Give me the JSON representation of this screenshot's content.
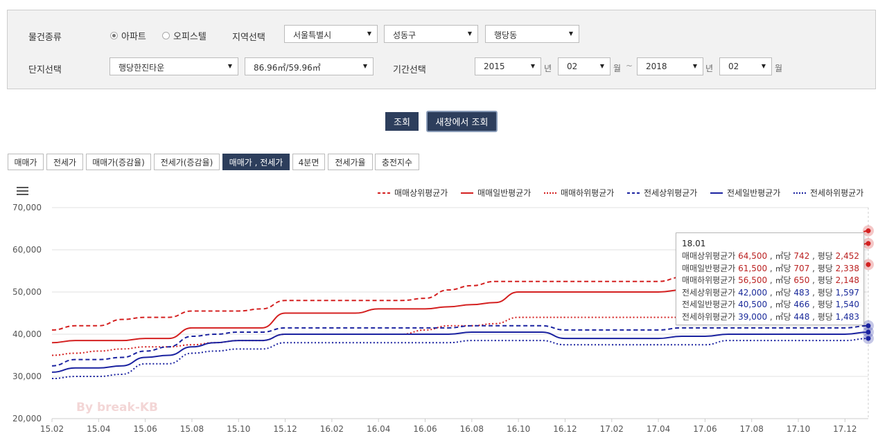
{
  "filters": {
    "property_type_label": "물건종류",
    "property_types": [
      {
        "label": "아파트",
        "checked": true
      },
      {
        "label": "오피스텔",
        "checked": false
      }
    ],
    "region_label": "지역선택",
    "region": [
      "서울특별시",
      "성동구",
      "행당동"
    ],
    "complex_label": "단지선택",
    "complex": "행당한진타운",
    "area": "86.96㎡/59.96㎡",
    "period_label": "기간선택",
    "start_year": "2015",
    "year_unit": "년",
    "start_month": "02",
    "month_unit": "월",
    "separator": "~",
    "end_year": "2018",
    "end_month": "02"
  },
  "actions": {
    "search": "조회",
    "search_new_window": "새창에서 조회"
  },
  "tabs": [
    {
      "label": "매매가",
      "active": false
    },
    {
      "label": "전세가",
      "active": false
    },
    {
      "label": "매매가(증감율)",
      "active": false
    },
    {
      "label": "전세가(증감율)",
      "active": false
    },
    {
      "label": "매매가 , 전세가",
      "active": true
    },
    {
      "label": "4분면",
      "active": false
    },
    {
      "label": "전세가율",
      "active": false
    },
    {
      "label": "충전지수",
      "active": false
    }
  ],
  "chart_data": {
    "type": "line",
    "watermark": "By break-KB",
    "ylim": [
      20000,
      70000
    ],
    "yticks": [
      "70,000",
      "60,000",
      "50,000",
      "40,000",
      "30,000",
      "20,000"
    ],
    "ytick_values": [
      70000,
      60000,
      50000,
      40000,
      30000,
      20000
    ],
    "x": [
      "15.02",
      "15.03",
      "15.04",
      "15.05",
      "15.06",
      "15.07",
      "15.08",
      "15.09",
      "15.10",
      "15.11",
      "15.12",
      "16.01",
      "16.02",
      "16.03",
      "16.04",
      "16.05",
      "16.06",
      "16.07",
      "16.08",
      "16.09",
      "16.10",
      "16.11",
      "16.12",
      "17.01",
      "17.02",
      "17.03",
      "17.04",
      "17.05",
      "17.06",
      "17.07",
      "17.08",
      "17.09",
      "17.10",
      "17.11",
      "17.12",
      "18.01"
    ],
    "xtick_labels": [
      "15.02",
      "15.04",
      "15.06",
      "15.08",
      "15.10",
      "15.12",
      "16.02",
      "16.04",
      "16.06",
      "16.08",
      "16.10",
      "16.12",
      "17.02",
      "17.04",
      "17.06",
      "17.08",
      "17.10",
      "17.12"
    ],
    "legend_position": "top-right",
    "grid": true,
    "series": [
      {
        "name": "매매상위평균가",
        "color": "#d42020",
        "dash": "dashed",
        "values": [
          41000,
          42000,
          42000,
          43500,
          44000,
          44000,
          45500,
          45500,
          45500,
          46000,
          48000,
          48000,
          48000,
          48000,
          48000,
          48000,
          48500,
          50500,
          51500,
          52500,
          52500,
          52500,
          52500,
          52500,
          52500,
          52500,
          52500,
          53500,
          53500,
          54500,
          55000,
          56000,
          57000,
          59000,
          61000,
          64500
        ]
      },
      {
        "name": "매매일반평균가",
        "color": "#d42020",
        "dash": "solid",
        "values": [
          38000,
          38500,
          38500,
          38500,
          39000,
          39000,
          41500,
          41500,
          41500,
          41500,
          45000,
          45000,
          45000,
          45000,
          46000,
          46000,
          46000,
          46500,
          47000,
          47500,
          50000,
          50000,
          50000,
          50000,
          50000,
          50000,
          50000,
          50500,
          50500,
          51500,
          52500,
          53500,
          54500,
          56500,
          58500,
          61500
        ]
      },
      {
        "name": "매매하위평균가",
        "color": "#d42020",
        "dash": "dotted",
        "values": [
          35000,
          35500,
          36000,
          36500,
          37000,
          37000,
          37500,
          38000,
          38500,
          38500,
          40000,
          40000,
          40000,
          40000,
          40000,
          40000,
          41000,
          42000,
          42000,
          42500,
          44000,
          44000,
          44000,
          44000,
          44000,
          44000,
          44000,
          44000,
          44000,
          45000,
          46000,
          47000,
          48500,
          50500,
          53000,
          56500
        ]
      },
      {
        "name": "전세상위평균가",
        "color": "#1a22a0",
        "dash": "dashed",
        "values": [
          32500,
          34000,
          34000,
          34500,
          36000,
          37000,
          39500,
          40000,
          40500,
          40500,
          41500,
          41500,
          41500,
          41500,
          41500,
          41500,
          41500,
          41500,
          42000,
          42000,
          42000,
          42000,
          41000,
          41000,
          41000,
          41000,
          41000,
          41500,
          41500,
          41500,
          41500,
          41500,
          41500,
          41500,
          41500,
          42000
        ]
      },
      {
        "name": "전세일반평균가",
        "color": "#1a22a0",
        "dash": "solid",
        "values": [
          31000,
          32000,
          32000,
          32500,
          34500,
          35000,
          37000,
          38000,
          38500,
          38500,
          40000,
          40000,
          40000,
          40000,
          40000,
          40000,
          40000,
          40000,
          40500,
          40500,
          40500,
          40500,
          39000,
          39000,
          39000,
          39000,
          39000,
          39500,
          39500,
          40000,
          40000,
          40000,
          40000,
          40000,
          40000,
          40500
        ]
      },
      {
        "name": "전세하위평균가",
        "color": "#1a22a0",
        "dash": "dotted",
        "values": [
          29500,
          30000,
          30000,
          30500,
          33000,
          33000,
          35500,
          36000,
          36500,
          36500,
          38000,
          38000,
          38000,
          38000,
          38000,
          38000,
          38000,
          38000,
          38500,
          38500,
          38500,
          38500,
          37500,
          37500,
          37500,
          37500,
          37500,
          37500,
          37500,
          38500,
          38500,
          38500,
          38500,
          38500,
          38500,
          39000
        ]
      }
    ]
  },
  "tooltip": {
    "title": "18.01",
    "per_sqm_label": "㎡당",
    "per_pyeong_label": "평당",
    "rows": [
      {
        "name": "매매상위평균가",
        "price": "64,500",
        "per_sqm": "742",
        "per_pyeong": "2,452"
      },
      {
        "name": "매매일반평균가",
        "price": "61,500",
        "per_sqm": "707",
        "per_pyeong": "2,338"
      },
      {
        "name": "매매하위평균가",
        "price": "56,500",
        "per_sqm": "650",
        "per_pyeong": "2,148"
      },
      {
        "name": "전세상위평균가",
        "price": "42,000",
        "per_sqm": "483",
        "per_pyeong": "1,597"
      },
      {
        "name": "전세일반평균가",
        "price": "40,500",
        "per_sqm": "466",
        "per_pyeong": "1,540"
      },
      {
        "name": "전세하위평균가",
        "price": "39,000",
        "per_sqm": "448",
        "per_pyeong": "1,483"
      }
    ]
  }
}
